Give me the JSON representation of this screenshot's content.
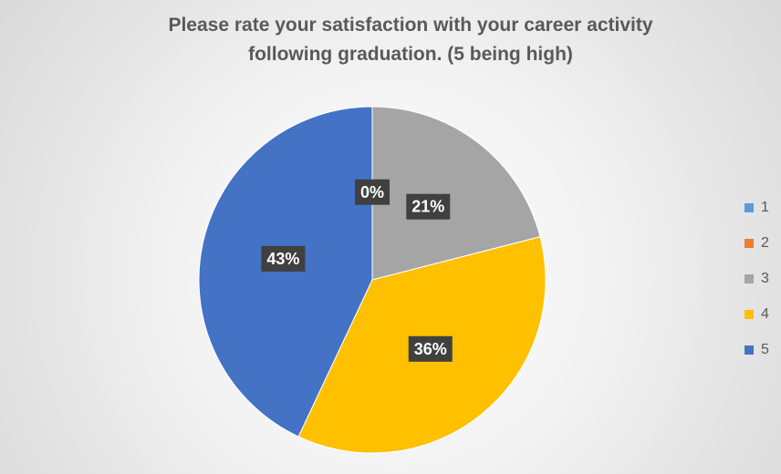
{
  "chart_data": {
    "type": "pie",
    "title": "Please rate your satisfaction with your career activity following graduation.  (5 being high)",
    "categories": [
      "1",
      "2",
      "3",
      "4",
      "5"
    ],
    "values": [
      0,
      0,
      21,
      36,
      43
    ],
    "value_labels": [
      "0%",
      null,
      "21%",
      "36%",
      "43%"
    ],
    "colors": [
      "#5b9bd5",
      "#ed7d31",
      "#a5a5a5",
      "#ffc000",
      "#4472c4"
    ],
    "legend": "right"
  }
}
